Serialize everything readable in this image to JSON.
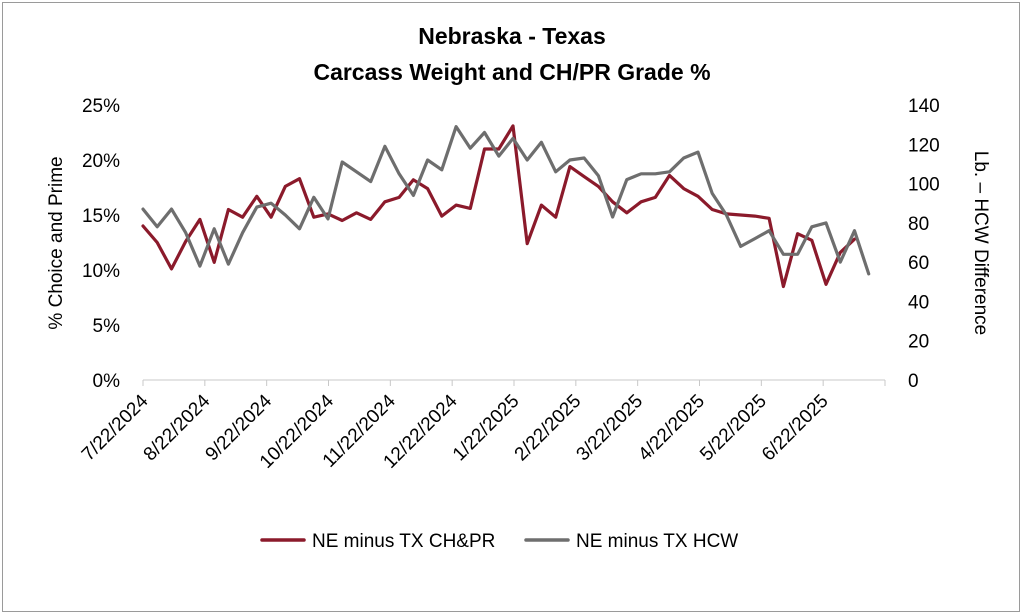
{
  "chart_data": {
    "type": "line",
    "title": "Nebraska - Texas",
    "subtitle": "Carcass Weight and CH/PR Grade %",
    "ylabel_left": "% Choice and Prime",
    "ylabel_right": "Lb. – HCW Difference",
    "x_tick_labels": [
      "7/22/2024",
      "8/22/2024",
      "9/22/2024",
      "10/22/2024",
      "11/22/2024",
      "12/22/2024",
      "1/22/2025",
      "2/22/2025",
      "3/22/2025",
      "4/22/2025",
      "5/22/2025",
      "6/22/2025"
    ],
    "x_start": "2024-07-22",
    "x_end": "2025-07-22",
    "y_left": {
      "min": 0,
      "max": 25,
      "ticks": [
        0,
        5,
        10,
        15,
        20,
        25
      ],
      "tick_labels": [
        "0%",
        "5%",
        "10%",
        "15%",
        "20%",
        "25%"
      ]
    },
    "y_right": {
      "min": 0,
      "max": 140,
      "ticks": [
        0,
        20,
        40,
        60,
        80,
        100,
        120,
        140
      ],
      "tick_labels": [
        "0",
        "20",
        "40",
        "60",
        "80",
        "100",
        "120",
        "140"
      ]
    },
    "legend_position": "bottom",
    "grid": false,
    "series": [
      {
        "name": "NE minus TX CH&PR",
        "axis": "left",
        "color": "#8b1a2b",
        "points": [
          [
            "2024-07-22",
            14.0
          ],
          [
            "2024-07-29",
            12.5
          ],
          [
            "2024-08-05",
            10.1
          ],
          [
            "2024-08-12",
            12.6
          ],
          [
            "2024-08-19",
            14.6
          ],
          [
            "2024-08-26",
            10.7
          ],
          [
            "2024-09-02",
            15.5
          ],
          [
            "2024-09-09",
            14.8
          ],
          [
            "2024-09-16",
            16.7
          ],
          [
            "2024-09-23",
            14.8
          ],
          [
            "2024-09-30",
            17.6
          ],
          [
            "2024-10-07",
            18.3
          ],
          [
            "2024-10-14",
            14.8
          ],
          [
            "2024-10-21",
            15.1
          ],
          [
            "2024-10-28",
            14.5
          ],
          [
            "2024-11-04",
            15.2
          ],
          [
            "2024-11-11",
            14.6
          ],
          [
            "2024-11-18",
            16.2
          ],
          [
            "2024-11-25",
            16.6
          ],
          [
            "2024-12-02",
            18.2
          ],
          [
            "2024-12-09",
            17.4
          ],
          [
            "2024-12-16",
            14.9
          ],
          [
            "2024-12-23",
            15.9
          ],
          [
            "2024-12-30",
            15.6
          ],
          [
            "2025-01-06",
            21.0
          ],
          [
            "2025-01-13",
            21.0
          ],
          [
            "2025-01-20",
            23.1
          ],
          [
            "2025-01-27",
            12.4
          ],
          [
            "2025-02-03",
            15.9
          ],
          [
            "2025-02-10",
            14.8
          ],
          [
            "2025-02-17",
            19.4
          ],
          [
            "2025-02-24",
            18.5
          ],
          [
            "2025-03-03",
            17.6
          ],
          [
            "2025-03-10",
            16.2
          ],
          [
            "2025-03-17",
            15.2
          ],
          [
            "2025-03-24",
            16.2
          ],
          [
            "2025-03-31",
            16.6
          ],
          [
            "2025-04-07",
            18.6
          ],
          [
            "2025-04-14",
            17.4
          ],
          [
            "2025-04-21",
            16.7
          ],
          [
            "2025-04-28",
            15.5
          ],
          [
            "2025-05-05",
            15.1
          ],
          [
            "2025-05-12",
            15.0
          ],
          [
            "2025-05-19",
            14.9
          ],
          [
            "2025-05-26",
            14.7
          ],
          [
            "2025-06-02",
            8.5
          ],
          [
            "2025-06-09",
            13.3
          ],
          [
            "2025-06-16",
            12.7
          ],
          [
            "2025-06-23",
            8.7
          ],
          [
            "2025-06-30",
            11.6
          ],
          [
            "2025-07-07",
            12.8
          ]
        ]
      },
      {
        "name": "NE minus TX HCW",
        "axis": "right",
        "color": "#6e6e6e",
        "points": [
          [
            "2024-07-22",
            87
          ],
          [
            "2024-07-29",
            78
          ],
          [
            "2024-08-05",
            87
          ],
          [
            "2024-08-12",
            75
          ],
          [
            "2024-08-19",
            58
          ],
          [
            "2024-08-26",
            77
          ],
          [
            "2024-09-02",
            59
          ],
          [
            "2024-09-09",
            75
          ],
          [
            "2024-09-16",
            88
          ],
          [
            "2024-09-23",
            90
          ],
          [
            "2024-09-30",
            84
          ],
          [
            "2024-10-07",
            77
          ],
          [
            "2024-10-14",
            93
          ],
          [
            "2024-10-21",
            82
          ],
          [
            "2024-10-28",
            111
          ],
          [
            "2024-11-04",
            106
          ],
          [
            "2024-11-11",
            101
          ],
          [
            "2024-11-18",
            119
          ],
          [
            "2024-11-25",
            105
          ],
          [
            "2024-12-02",
            94
          ],
          [
            "2024-12-09",
            112
          ],
          [
            "2024-12-16",
            107
          ],
          [
            "2024-12-23",
            129
          ],
          [
            "2024-12-30",
            118
          ],
          [
            "2025-01-06",
            126
          ],
          [
            "2025-01-13",
            114
          ],
          [
            "2025-01-20",
            123
          ],
          [
            "2025-01-27",
            112
          ],
          [
            "2025-02-03",
            121
          ],
          [
            "2025-02-10",
            106
          ],
          [
            "2025-02-17",
            112
          ],
          [
            "2025-02-24",
            113
          ],
          [
            "2025-03-03",
            104
          ],
          [
            "2025-03-10",
            83
          ],
          [
            "2025-03-17",
            102
          ],
          [
            "2025-03-24",
            105
          ],
          [
            "2025-03-31",
            105
          ],
          [
            "2025-04-07",
            106
          ],
          [
            "2025-04-14",
            113
          ],
          [
            "2025-04-21",
            116
          ],
          [
            "2025-04-28",
            95
          ],
          [
            "2025-05-05",
            84
          ],
          [
            "2025-05-12",
            68
          ],
          [
            "2025-05-19",
            72
          ],
          [
            "2025-05-26",
            76
          ],
          [
            "2025-06-02",
            64
          ],
          [
            "2025-06-09",
            64
          ],
          [
            "2025-06-16",
            78
          ],
          [
            "2025-06-23",
            80
          ],
          [
            "2025-06-30",
            60
          ],
          [
            "2025-07-07",
            76
          ],
          [
            "2025-07-14",
            54
          ]
        ]
      }
    ]
  }
}
